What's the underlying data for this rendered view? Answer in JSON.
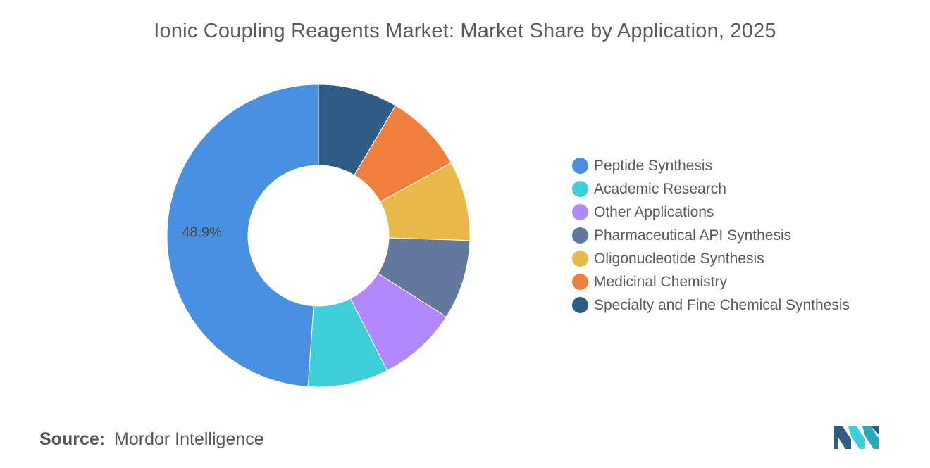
{
  "title": "Ionic Coupling Reagents Market: Market Share by Application, 2025",
  "source": {
    "label": "Source:",
    "value": "Mordor Intelligence"
  },
  "chart_data": {
    "type": "pie",
    "donut": true,
    "title": "Ionic Coupling Reagents Market: Market Share by Application, 2025",
    "legend_position": "right",
    "categories": [
      "Peptide Synthesis",
      "Academic Research",
      "Other Applications",
      "Pharmaceutical API Synthesis",
      "Oligonucleotide Synthesis",
      "Medicinal Chemistry",
      "Specialty and Fine Chemical Synthesis"
    ],
    "values": [
      48.9,
      8.6,
      8.5,
      8.5,
      8.5,
      8.5,
      8.5
    ],
    "colors": [
      "#4a90e2",
      "#3ecfdb",
      "#b388ff",
      "#62789c",
      "#e8b84a",
      "#f07f3d",
      "#2e5c85"
    ],
    "data_labels": [
      {
        "category": "Peptide Synthesis",
        "text": "48.9%"
      }
    ]
  }
}
